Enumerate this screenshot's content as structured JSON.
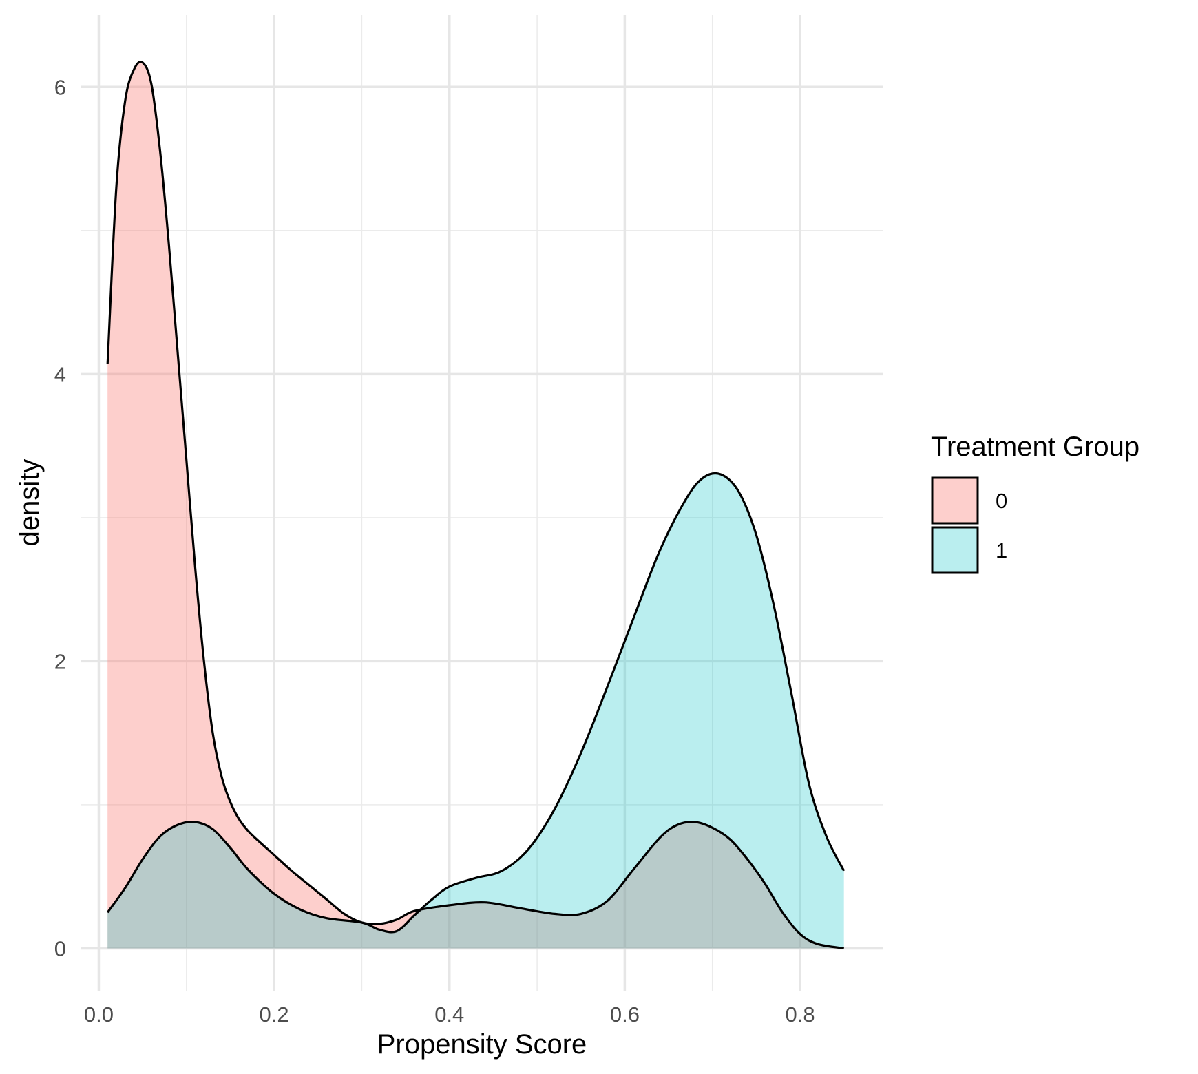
{
  "chart_data": {
    "type": "area",
    "xlabel": "Propensity Score",
    "ylabel": "density",
    "xlim": [
      -0.02,
      0.895
    ],
    "ylim": [
      -0.3,
      6.5
    ],
    "x_ticks": [
      0.0,
      0.2,
      0.4,
      0.6,
      0.8
    ],
    "x_tick_labels": [
      "0.0",
      "0.2",
      "0.4",
      "0.6",
      "0.8"
    ],
    "x_minor_ticks": [
      0.1,
      0.3,
      0.5,
      0.7
    ],
    "y_ticks": [
      0,
      2,
      4,
      6
    ],
    "y_tick_labels": [
      "0",
      "2",
      "4",
      "6"
    ],
    "y_minor_ticks": [
      1,
      3,
      5
    ],
    "grid": true,
    "legend": {
      "title": "Treatment Group",
      "placement": "right",
      "entries": [
        "0",
        "1"
      ]
    },
    "series": [
      {
        "name": "0",
        "color": "#F8766D",
        "x": [
          0.01,
          0.02,
          0.03,
          0.04,
          0.05,
          0.06,
          0.07,
          0.08,
          0.09,
          0.1,
          0.11,
          0.12,
          0.13,
          0.14,
          0.15,
          0.16,
          0.17,
          0.18,
          0.2,
          0.22,
          0.24,
          0.26,
          0.28,
          0.3,
          0.32,
          0.34,
          0.36,
          0.4,
          0.44,
          0.48,
          0.52,
          0.55,
          0.58,
          0.61,
          0.64,
          0.66,
          0.68,
          0.7,
          0.72,
          0.74,
          0.76,
          0.78,
          0.8,
          0.82,
          0.85
        ],
        "values": [
          4.07,
          5.3,
          5.9,
          6.12,
          6.17,
          6.02,
          5.55,
          4.9,
          4.15,
          3.4,
          2.65,
          2.0,
          1.5,
          1.2,
          1.02,
          0.9,
          0.82,
          0.76,
          0.65,
          0.54,
          0.44,
          0.34,
          0.24,
          0.18,
          0.17,
          0.2,
          0.26,
          0.3,
          0.32,
          0.28,
          0.24,
          0.24,
          0.33,
          0.55,
          0.77,
          0.86,
          0.88,
          0.84,
          0.76,
          0.62,
          0.45,
          0.25,
          0.1,
          0.03,
          0.0
        ]
      },
      {
        "name": "1",
        "color": "#00BFC4",
        "x": [
          0.01,
          0.03,
          0.05,
          0.07,
          0.09,
          0.11,
          0.13,
          0.15,
          0.17,
          0.2,
          0.23,
          0.26,
          0.3,
          0.32,
          0.34,
          0.36,
          0.38,
          0.4,
          0.43,
          0.46,
          0.49,
          0.52,
          0.55,
          0.58,
          0.61,
          0.64,
          0.67,
          0.69,
          0.71,
          0.73,
          0.75,
          0.77,
          0.79,
          0.81,
          0.83,
          0.85
        ],
        "values": [
          0.25,
          0.42,
          0.62,
          0.78,
          0.86,
          0.88,
          0.83,
          0.7,
          0.55,
          0.38,
          0.27,
          0.21,
          0.18,
          0.13,
          0.12,
          0.23,
          0.34,
          0.43,
          0.49,
          0.54,
          0.69,
          0.97,
          1.36,
          1.82,
          2.3,
          2.77,
          3.13,
          3.28,
          3.3,
          3.18,
          2.88,
          2.39,
          1.78,
          1.15,
          0.78,
          0.54
        ]
      }
    ]
  }
}
